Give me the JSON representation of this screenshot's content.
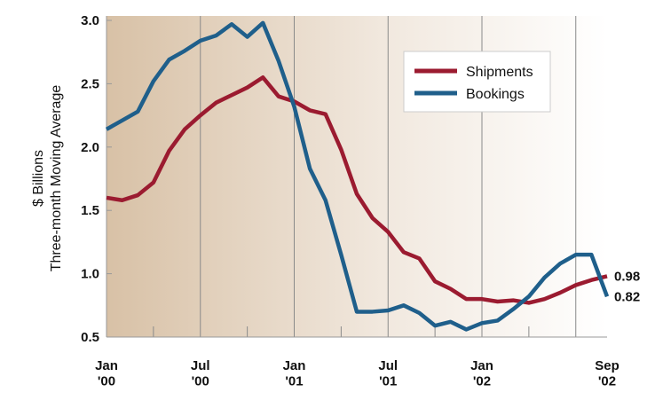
{
  "chart_data": {
    "type": "line",
    "y_label": [
      "$ Billions",
      "Three-month Moving Average"
    ],
    "categories": [
      "Jan\n'00",
      null,
      null,
      null,
      null,
      null,
      "Jul\n'00",
      null,
      null,
      null,
      null,
      null,
      "Jan\n'01",
      null,
      null,
      null,
      null,
      null,
      "Jul\n'01",
      null,
      null,
      null,
      null,
      null,
      "Jan\n'02",
      null,
      null,
      null,
      null,
      null,
      null,
      null,
      "Sep\n'02"
    ],
    "series": [
      {
        "name": "Shipments",
        "color": "#9b1b30",
        "values": [
          1.6,
          1.58,
          1.62,
          1.72,
          1.97,
          2.14,
          2.25,
          2.35,
          2.41,
          2.47,
          2.55,
          2.4,
          2.36,
          2.29,
          2.26,
          1.98,
          1.63,
          1.44,
          1.33,
          1.17,
          1.12,
          0.94,
          0.88,
          0.8,
          0.8,
          0.78,
          0.79,
          0.77,
          0.8,
          0.85,
          0.91,
          0.95,
          0.98
        ]
      },
      {
        "name": "Bookings",
        "color": "#1f5f8b",
        "values": [
          2.14,
          2.21,
          2.28,
          2.52,
          2.69,
          2.76,
          2.84,
          2.88,
          2.97,
          2.87,
          2.98,
          2.68,
          2.32,
          1.83,
          1.58,
          1.15,
          0.7,
          0.7,
          0.71,
          0.75,
          0.69,
          0.59,
          0.62,
          0.56,
          0.61,
          0.63,
          0.72,
          0.82,
          0.97,
          1.08,
          1.15,
          1.15,
          0.82
        ]
      }
    ],
    "ylim": [
      0.5,
      3.0
    ],
    "yticks": [
      0.5,
      {
        "value": 1.0,
        "label": "1.0"
      },
      1.5,
      {
        "value": 2.0,
        "label": "2.0"
      },
      2.5,
      {
        "value": 3.0,
        "label": "3.0"
      }
    ],
    "legend": "top-right"
  }
}
